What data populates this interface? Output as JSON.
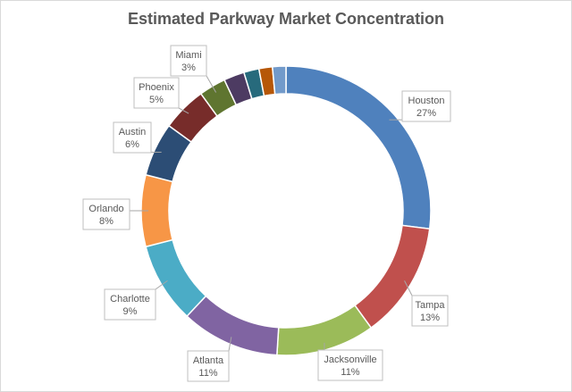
{
  "chart_data": {
    "type": "pie",
    "subtype": "doughnut",
    "title": "Estimated Parkway  Market Concentration",
    "slices": [
      {
        "label": "Houston",
        "value": 27,
        "pct_text": "27%",
        "color": "#4f81bd"
      },
      {
        "label": "Tampa",
        "value": 13,
        "pct_text": "13%",
        "color": "#c0504d"
      },
      {
        "label": "Jacksonville",
        "value": 11,
        "pct_text": "11%",
        "color": "#9bbb59"
      },
      {
        "label": "Atlanta",
        "value": 11,
        "pct_text": "11%",
        "color": "#8064a2"
      },
      {
        "label": "Charlotte",
        "value": 9,
        "pct_text": "9%",
        "color": "#4bacc6"
      },
      {
        "label": "Orlando",
        "value": 8,
        "pct_text": "8%",
        "color": "#f79646"
      },
      {
        "label": "Austin",
        "value": 6,
        "pct_text": "6%",
        "color": "#2c4d75"
      },
      {
        "label": "Phoenix",
        "value": 5,
        "pct_text": "5%",
        "color": "#772c2a"
      },
      {
        "label": "Miami",
        "value": 3,
        "pct_text": "3%",
        "color": "#5f7530"
      },
      {
        "label": "",
        "value": 2.3,
        "pct_text": "",
        "color": "#4d3b62"
      },
      {
        "label": "",
        "value": 1.7,
        "pct_text": "",
        "color": "#276a7c"
      },
      {
        "label": "",
        "value": 1.5,
        "pct_text": "",
        "color": "#b65708"
      },
      {
        "label": "",
        "value": 1.5,
        "pct_text": "",
        "color": "#729aca"
      }
    ]
  }
}
